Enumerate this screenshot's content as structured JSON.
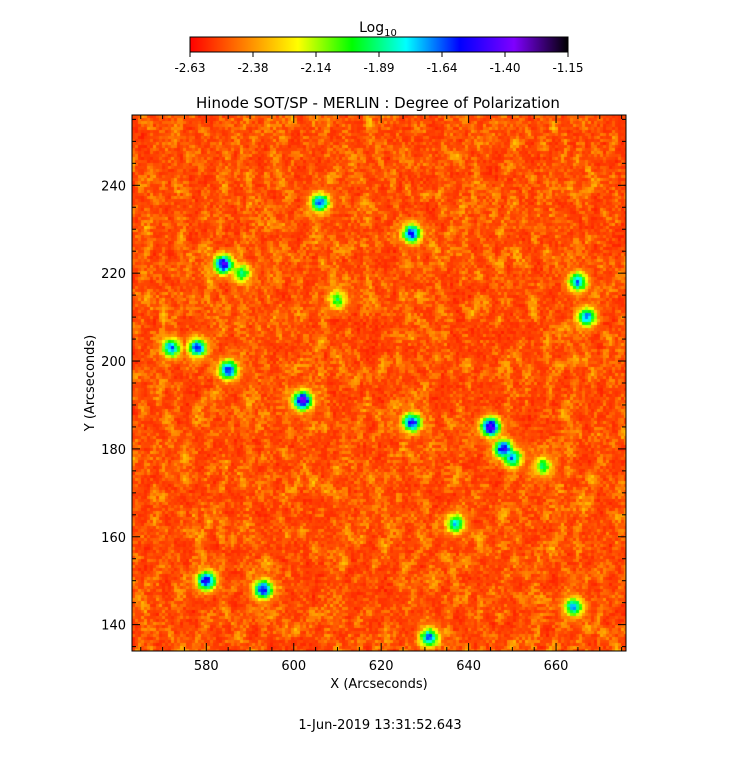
{
  "chart_data": {
    "type": "heatmap",
    "title": "Hinode SOT/SP - MERLIN : Degree of Polarization",
    "xlabel": "X (Arcseconds)",
    "ylabel": "Y (Arcseconds)",
    "xlim": [
      563,
      676
    ],
    "ylim": [
      134,
      256
    ],
    "x_ticks": [
      580,
      600,
      620,
      640,
      660
    ],
    "y_ticks": [
      140,
      160,
      180,
      200,
      220,
      240
    ],
    "colorbar": {
      "label_main": "Log",
      "label_sub": "10",
      "ticks": [
        "-2.63",
        "-2.38",
        "-2.14",
        "-1.89",
        "-1.64",
        "-1.40",
        "-1.15"
      ],
      "range": [
        -2.63,
        -1.15
      ],
      "colors": [
        "#ff0000",
        "#ff7f00",
        "#ffff00",
        "#00ff00",
        "#00ffff",
        "#0000ff",
        "#7f00ff",
        "#000000"
      ]
    },
    "background_level": -2.5,
    "concentrations": [
      {
        "x": 584,
        "y": 222,
        "peak": -1.35
      },
      {
        "x": 572,
        "y": 203,
        "peak": -1.6
      },
      {
        "x": 578,
        "y": 203,
        "peak": -1.5
      },
      {
        "x": 585,
        "y": 198,
        "peak": -1.45
      },
      {
        "x": 602,
        "y": 191,
        "peak": -1.3
      },
      {
        "x": 606,
        "y": 236,
        "peak": -1.55
      },
      {
        "x": 627,
        "y": 229,
        "peak": -1.5
      },
      {
        "x": 627,
        "y": 186,
        "peak": -1.45
      },
      {
        "x": 645,
        "y": 185,
        "peak": -1.3
      },
      {
        "x": 648,
        "y": 180,
        "peak": -1.4
      },
      {
        "x": 580,
        "y": 150,
        "peak": -1.4
      },
      {
        "x": 593,
        "y": 148,
        "peak": -1.45
      },
      {
        "x": 631,
        "y": 137,
        "peak": -1.55
      },
      {
        "x": 650,
        "y": 178,
        "peak": -1.6
      },
      {
        "x": 665,
        "y": 218,
        "peak": -1.6
      },
      {
        "x": 667,
        "y": 210,
        "peak": -1.55
      },
      {
        "x": 664,
        "y": 144,
        "peak": -1.65
      },
      {
        "x": 637,
        "y": 163,
        "peak": -1.7
      },
      {
        "x": 588,
        "y": 220,
        "peak": -1.8
      },
      {
        "x": 610,
        "y": 214,
        "peak": -1.9
      },
      {
        "x": 657,
        "y": 176,
        "peak": -1.85
      }
    ]
  },
  "footer": {
    "timestamp": "1-Jun-2019 13:31:52.643"
  }
}
